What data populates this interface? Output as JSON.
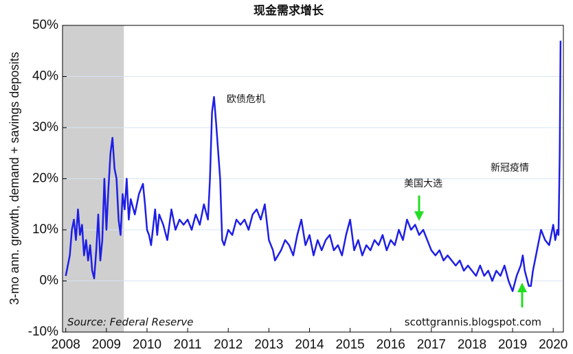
{
  "chart_data": {
    "type": "line",
    "title": "现金需求增长",
    "y_label": "3-mo ann. growth, demand + savings deposits",
    "source": "Source: Federal Reserve",
    "credit": "scottgrannis.blogspot.com",
    "annotations": [
      "欧债危机",
      "美国大选",
      "新冠疫情"
    ],
    "recession": {
      "start": 2007.92,
      "end": 2009.43
    },
    "xlim": [
      2007.92,
      2020.25
    ],
    "xticks": [
      2008,
      2009,
      2010,
      2011,
      2012,
      2013,
      2014,
      2015,
      2016,
      2017,
      2018,
      2019,
      2020
    ],
    "ylim": [
      -10,
      50
    ],
    "yticks": [
      {
        "value": -10,
        "label": "-10%"
      },
      {
        "value": 0,
        "label": "0%"
      },
      {
        "value": 10,
        "label": "10%"
      },
      {
        "value": 20,
        "label": "20%"
      },
      {
        "value": 30,
        "label": "30%"
      },
      {
        "value": 40,
        "label": "40%"
      },
      {
        "value": 50,
        "label": "50%"
      }
    ],
    "grid": true,
    "color": "#1e1ee6",
    "x": [
      2008.0,
      2008.05,
      2008.1,
      2008.15,
      2008.2,
      2008.25,
      2008.3,
      2008.35,
      2008.4,
      2008.45,
      2008.5,
      2008.55,
      2008.6,
      2008.65,
      2008.7,
      2008.75,
      2008.8,
      2008.85,
      2008.9,
      2008.95,
      2009.0,
      2009.05,
      2009.1,
      2009.15,
      2009.2,
      2009.25,
      2009.3,
      2009.35,
      2009.4,
      2009.45,
      2009.5,
      2009.55,
      2009.6,
      2009.7,
      2009.8,
      2009.9,
      2009.95,
      2010.0,
      2010.05,
      2010.1,
      2010.2,
      2010.25,
      2010.3,
      2010.4,
      2010.5,
      2010.6,
      2010.7,
      2010.8,
      2010.9,
      2011.0,
      2011.1,
      2011.2,
      2011.3,
      2011.4,
      2011.5,
      2011.55,
      2011.6,
      2011.65,
      2011.7,
      2011.8,
      2011.85,
      2011.9,
      2012.0,
      2012.1,
      2012.2,
      2012.3,
      2012.4,
      2012.5,
      2012.6,
      2012.7,
      2012.8,
      2012.9,
      2013.0,
      2013.1,
      2013.15,
      2013.3,
      2013.4,
      2013.5,
      2013.6,
      2013.7,
      2013.8,
      2013.9,
      2014.0,
      2014.1,
      2014.2,
      2014.3,
      2014.4,
      2014.5,
      2014.6,
      2014.7,
      2014.8,
      2014.9,
      2015.0,
      2015.1,
      2015.2,
      2015.3,
      2015.4,
      2015.5,
      2015.6,
      2015.7,
      2015.8,
      2015.9,
      2016.0,
      2016.1,
      2016.2,
      2016.3,
      2016.4,
      2016.5,
      2016.6,
      2016.7,
      2016.8,
      2016.9,
      2017.0,
      2017.1,
      2017.2,
      2017.3,
      2017.4,
      2017.5,
      2017.6,
      2017.7,
      2017.8,
      2017.9,
      2018.0,
      2018.1,
      2018.2,
      2018.3,
      2018.4,
      2018.5,
      2018.6,
      2018.7,
      2018.8,
      2018.9,
      2019.0,
      2019.1,
      2019.2,
      2019.25,
      2019.3,
      2019.4,
      2019.45,
      2019.5,
      2019.6,
      2019.7,
      2019.8,
      2019.9,
      2019.95,
      2020.0,
      2020.05,
      2020.1,
      2020.13,
      2020.16,
      2020.18
    ],
    "values": [
      1,
      3,
      5,
      10,
      12,
      8,
      14,
      9,
      11,
      5,
      8,
      4,
      7,
      2,
      0.5,
      6,
      13,
      4,
      8,
      20,
      10,
      18,
      25,
      28,
      22,
      20,
      12,
      9,
      17,
      14,
      20,
      12,
      16,
      13,
      17,
      19,
      15,
      10,
      9,
      7,
      14,
      9,
      13,
      11,
      8,
      14,
      10,
      12,
      11,
      12,
      10,
      13,
      11,
      15,
      12,
      20,
      33,
      36,
      31,
      20,
      8,
      7,
      10,
      9,
      12,
      11,
      12,
      10,
      13,
      14,
      12,
      15,
      8,
      6,
      4,
      6,
      8,
      7,
      5,
      9,
      12,
      7,
      9,
      5,
      8,
      6,
      8,
      9,
      6,
      7,
      5,
      9,
      12,
      6,
      8,
      5,
      7,
      6,
      8,
      7,
      9,
      6,
      8,
      7,
      10,
      8,
      12,
      10,
      11,
      9,
      10,
      8,
      6,
      5,
      6,
      4,
      5,
      4,
      3,
      4,
      2,
      3,
      2,
      1,
      3,
      1,
      2,
      0,
      2,
      1,
      3,
      0,
      -2,
      1,
      3,
      5,
      2,
      -1,
      -1,
      2,
      6,
      10,
      8,
      7,
      9,
      11,
      8,
      10,
      9,
      25,
      47
    ]
  }
}
